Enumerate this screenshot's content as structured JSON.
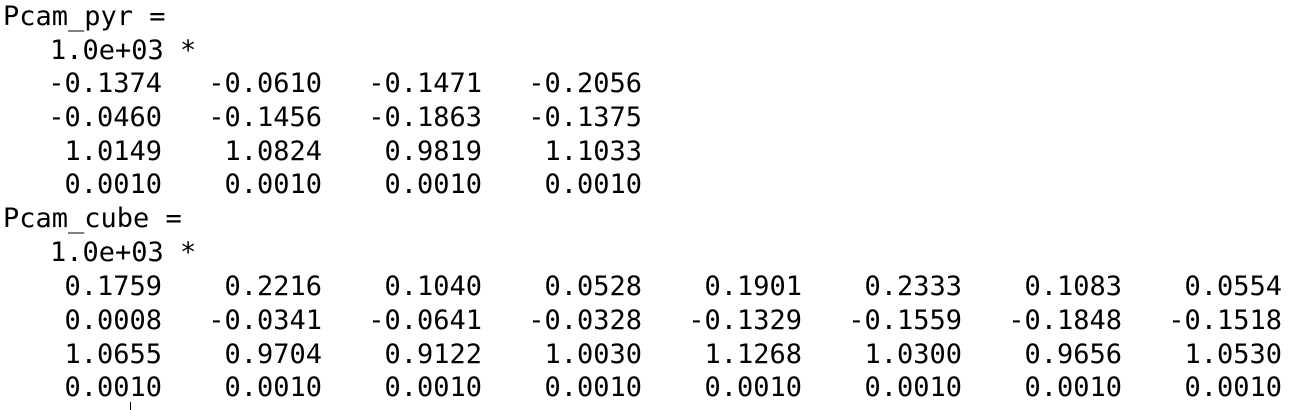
{
  "pyr": {
    "header": "Pcam_pyr =",
    "scale": "1.0e+03 *",
    "rows": [
      [
        "-0.1374",
        "-0.0610",
        "-0.1471",
        "-0.2056"
      ],
      [
        "-0.0460",
        "-0.1456",
        "-0.1863",
        "-0.1375"
      ],
      [
        "1.0149",
        "1.0824",
        "0.9819",
        "1.1033"
      ],
      [
        "0.0010",
        "0.0010",
        "0.0010",
        "0.0010"
      ]
    ]
  },
  "cube": {
    "header": "Pcam_cube =",
    "scale": "1.0e+03 *",
    "rows": [
      [
        "0.1759",
        "0.2216",
        "0.1040",
        "0.0528",
        "0.1901",
        "0.2333",
        "0.1083",
        "0.0554"
      ],
      [
        "0.0008",
        "-0.0341",
        "-0.0641",
        "-0.0328",
        "-0.1329",
        "-0.1559",
        "-0.1848",
        "-0.1518"
      ],
      [
        "1.0655",
        "0.9704",
        "0.9122",
        "1.0030",
        "1.1268",
        "1.0300",
        "0.9656",
        "1.0530"
      ],
      [
        "0.0010",
        "0.0010",
        "0.0010",
        "0.0010",
        "0.0010",
        "0.0010",
        "0.0010",
        "0.0010"
      ]
    ]
  }
}
